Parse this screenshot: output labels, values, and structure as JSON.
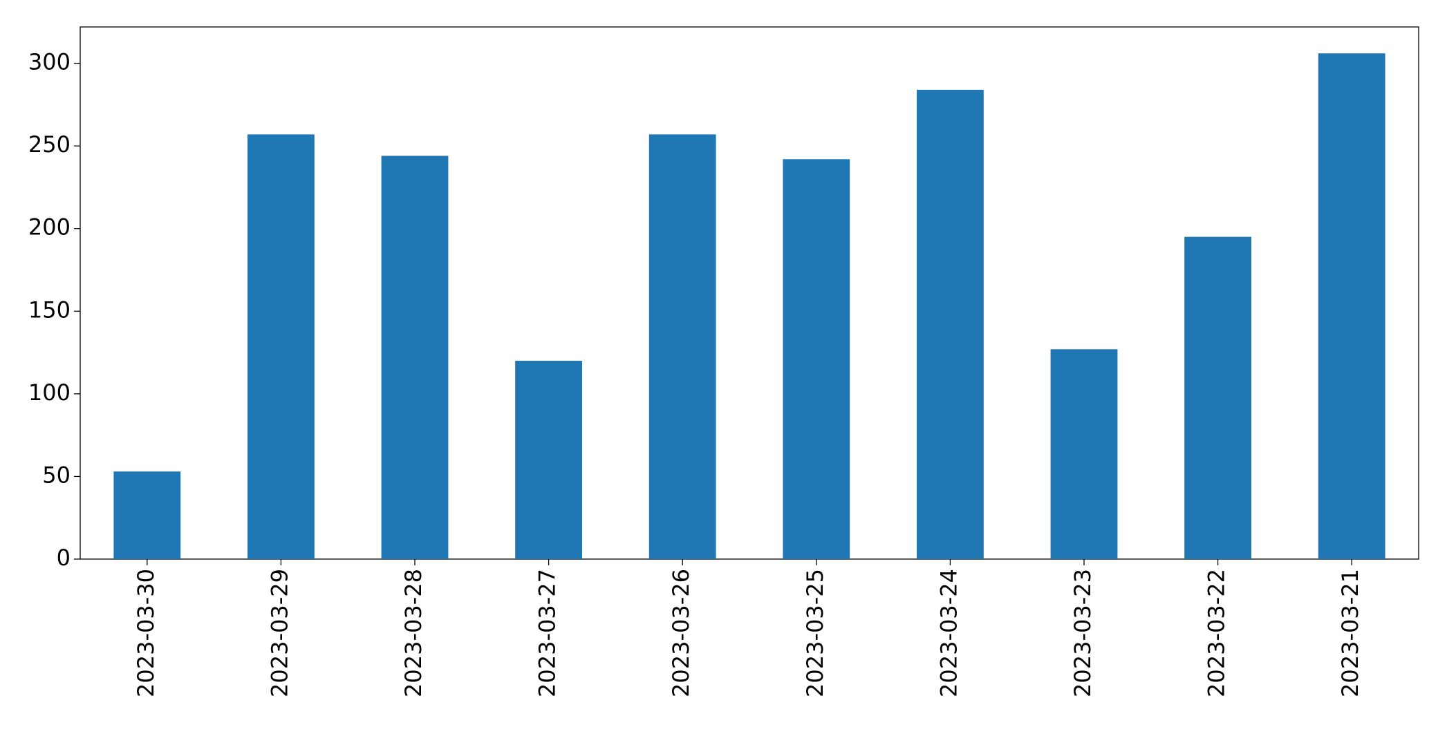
{
  "chart_data": {
    "type": "bar",
    "categories": [
      "2023-03-30",
      "2023-03-29",
      "2023-03-28",
      "2023-03-27",
      "2023-03-26",
      "2023-03-25",
      "2023-03-24",
      "2023-03-23",
      "2023-03-22",
      "2023-03-21"
    ],
    "values": [
      53,
      257,
      244,
      120,
      257,
      242,
      284,
      127,
      195,
      306
    ],
    "color": "#1f77b4",
    "ylim": [
      0,
      322
    ],
    "yticks": [
      0,
      50,
      100,
      150,
      200,
      250,
      300
    ],
    "grid": false
  }
}
